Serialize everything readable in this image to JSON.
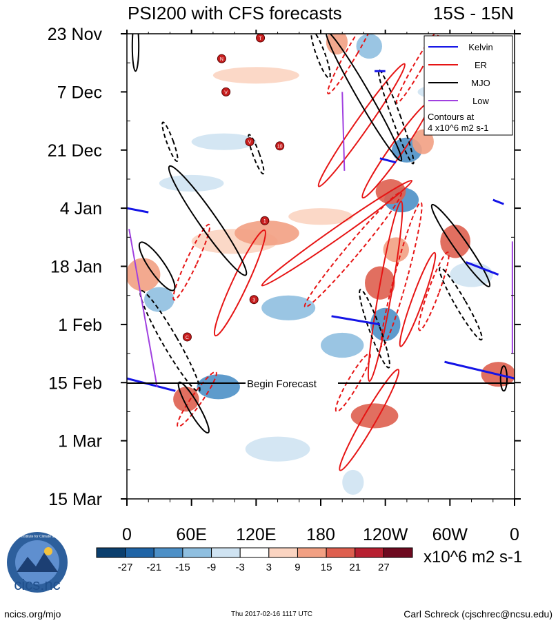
{
  "title_left": "PSI200 with CFS forecasts",
  "title_right": "15S - 15N",
  "forecast_label": "Begin Forecast",
  "units_label": "x10^6 m2 s-1",
  "logo": {
    "text": "cics.nc",
    "ring_text": "Cooperative Institute for Climate and Satellites"
  },
  "footer": {
    "left": "ncics.org/mjo",
    "center": "Thu 2017-02-16 1117 UTC",
    "right": "Carl Schreck (cjschrec@ncsu.edu)"
  },
  "chart_data": {
    "type": "heatmap",
    "title": "PSI200 with CFS forecasts",
    "subtitle": "15S - 15N",
    "x_ticks": [
      "0",
      "60E",
      "120E",
      "180",
      "120W",
      "60W",
      "0"
    ],
    "x_tick_deg": [
      0,
      60,
      120,
      180,
      240,
      300,
      360
    ],
    "xlim_deg": [
      0,
      360
    ],
    "y_ticks": [
      "23 Nov",
      "7 Dec",
      "21 Dec",
      "4 Jan",
      "18 Jan",
      "1 Feb",
      "15 Feb",
      "1 Mar",
      "15 Mar"
    ],
    "y_tick_day": [
      0,
      14,
      28,
      42,
      56,
      70,
      84,
      98,
      112
    ],
    "ylim_day": [
      0,
      112
    ],
    "forecast_start_day": 84,
    "colorbar": {
      "labels": [
        "-27",
        "-21",
        "-15",
        "-9",
        "-3",
        "3",
        "9",
        "15",
        "21",
        "27"
      ],
      "colors": [
        "#0b3f6e",
        "#1f64a6",
        "#4d90c7",
        "#8fbfe0",
        "#cfe3f2",
        "#ffffff",
        "#fbd4c1",
        "#f2a083",
        "#de5f4f",
        "#b82031",
        "#6e0a20"
      ]
    },
    "legend": {
      "position": "top-right",
      "entries": [
        {
          "label": "Kelvin",
          "color": "#1414e6"
        },
        {
          "label": "ER",
          "color": "#e61414"
        },
        {
          "label": "MJO",
          "color": "#000000"
        },
        {
          "label": "Low",
          "color": "#a040e0"
        }
      ],
      "note_line1": "Contours at",
      "note_line2": "4 x10^6 m2 s-1"
    },
    "anomaly_blobs": [
      {
        "lon": 15,
        "day": 58,
        "rlon": 16,
        "rday": 4,
        "value": 14
      },
      {
        "lon": 30,
        "day": 64,
        "rlon": 14,
        "rday": 3,
        "value": -12
      },
      {
        "lon": 55,
        "day": 88,
        "rlon": 12,
        "rday": 3,
        "value": 16
      },
      {
        "lon": 85,
        "day": 85,
        "rlon": 20,
        "rday": 3,
        "value": -20
      },
      {
        "lon": 100,
        "day": 50,
        "rlon": 40,
        "rday": 3,
        "value": 7
      },
      {
        "lon": 90,
        "day": 26,
        "rlon": 30,
        "rday": 2,
        "value": -6
      },
      {
        "lon": 130,
        "day": 48,
        "rlon": 30,
        "rday": 3,
        "value": 10
      },
      {
        "lon": 150,
        "day": 66,
        "rlon": 25,
        "rday": 3,
        "value": -9
      },
      {
        "lon": 200,
        "day": 75,
        "rlon": 20,
        "rday": 3,
        "value": -10
      },
      {
        "lon": 230,
        "day": 92,
        "rlon": 22,
        "rday": 3,
        "value": 18
      },
      {
        "lon": 240,
        "day": 70,
        "rlon": 14,
        "rday": 4,
        "value": -16
      },
      {
        "lon": 235,
        "day": 60,
        "rlon": 14,
        "rday": 4,
        "value": 19
      },
      {
        "lon": 250,
        "day": 52,
        "rlon": 12,
        "rday": 3,
        "value": 15
      },
      {
        "lon": 255,
        "day": 40,
        "rlon": 16,
        "rday": 3,
        "value": -18
      },
      {
        "lon": 245,
        "day": 38,
        "rlon": 14,
        "rday": 3,
        "value": 17
      },
      {
        "lon": 260,
        "day": 28,
        "rlon": 14,
        "rday": 3,
        "value": -15
      },
      {
        "lon": 275,
        "day": 26,
        "rlon": 10,
        "rday": 3,
        "value": 12
      },
      {
        "lon": 225,
        "day": 3,
        "rlon": 12,
        "rday": 3,
        "value": -14
      },
      {
        "lon": 195,
        "day": 2,
        "rlon": 10,
        "rday": 3,
        "value": 13
      },
      {
        "lon": 305,
        "day": 50,
        "rlon": 14,
        "rday": 4,
        "value": 16
      },
      {
        "lon": 345,
        "day": 82,
        "rlon": 16,
        "rday": 3,
        "value": 21
      },
      {
        "lon": 320,
        "day": 58,
        "rlon": 20,
        "rday": 3,
        "value": -6
      },
      {
        "lon": 180,
        "day": 44,
        "rlon": 30,
        "rday": 2,
        "value": 8
      },
      {
        "lon": 60,
        "day": 36,
        "rlon": 30,
        "rday": 2,
        "value": -5
      },
      {
        "lon": 140,
        "day": 100,
        "rlon": 30,
        "rday": 3,
        "value": -6
      },
      {
        "lon": 210,
        "day": 108,
        "rlon": 10,
        "rday": 3,
        "value": -8
      },
      {
        "lon": 300,
        "day": 14,
        "rlon": 30,
        "rday": 2,
        "value": -7
      },
      {
        "lon": 120,
        "day": 10,
        "rlon": 40,
        "rday": 2,
        "value": 6
      }
    ],
    "contours": [
      {
        "type": "ER",
        "dashed": false,
        "lon": 105,
        "day": 60,
        "rlon": 7,
        "rday": 14,
        "rot": 25
      },
      {
        "type": "ER",
        "dashed": true,
        "lon": 60,
        "day": 55,
        "rlon": 5,
        "rday": 10,
        "rot": 25
      },
      {
        "type": "ER",
        "dashed": false,
        "lon": 195,
        "day": 48,
        "rlon": 5,
        "rday": 22,
        "rot": 55
      },
      {
        "type": "ER",
        "dashed": true,
        "lon": 210,
        "day": 52,
        "rlon": 6,
        "rday": 18,
        "rot": 40
      },
      {
        "type": "ER",
        "dashed": false,
        "lon": 240,
        "day": 62,
        "rlon": 6,
        "rday": 22,
        "rot": 10
      },
      {
        "type": "ER",
        "dashed": true,
        "lon": 255,
        "day": 58,
        "rlon": 6,
        "rday": 18,
        "rot": 15
      },
      {
        "type": "ER",
        "dashed": false,
        "lon": 270,
        "day": 64,
        "rlon": 5,
        "rday": 12,
        "rot": 20
      },
      {
        "type": "ER",
        "dashed": true,
        "lon": 285,
        "day": 62,
        "rlon": 5,
        "rday": 10,
        "rot": 20
      },
      {
        "type": "ER",
        "dashed": false,
        "lon": 225,
        "day": 93,
        "rlon": 6,
        "rday": 14,
        "rot": 30
      },
      {
        "type": "ER",
        "dashed": true,
        "lon": 210,
        "day": 84,
        "rlon": 5,
        "rday": 8,
        "rot": 30
      },
      {
        "type": "ER",
        "dashed": true,
        "lon": 65,
        "day": 88,
        "rlon": 5,
        "rday": 8,
        "rot": 35
      },
      {
        "type": "ER",
        "dashed": false,
        "lon": 218,
        "day": 22,
        "rlon": 6,
        "rday": 18,
        "rot": 35
      },
      {
        "type": "ER",
        "dashed": false,
        "lon": 250,
        "day": 28,
        "rlon": 6,
        "rday": 14,
        "rot": 35
      },
      {
        "type": "ER",
        "dashed": true,
        "lon": 210,
        "day": 4,
        "rlon": 5,
        "rday": 12,
        "rot": 30
      },
      {
        "type": "ER",
        "dashed": true,
        "lon": 270,
        "day": 8,
        "rlon": 4,
        "rday": 10,
        "rot": 30
      },
      {
        "type": "MJO",
        "dashed": false,
        "lon": 75,
        "day": 45,
        "rlon": 8,
        "rday": 16,
        "rot": -35
      },
      {
        "type": "MJO",
        "dashed": false,
        "lon": 28,
        "day": 56,
        "rlon": 7,
        "rday": 7,
        "rot": -35
      },
      {
        "type": "MJO",
        "dashed": true,
        "lon": 40,
        "day": 74,
        "rlon": 7,
        "rday": 14,
        "rot": -30
      },
      {
        "type": "MJO",
        "dashed": false,
        "lon": 62,
        "day": 90,
        "rlon": 5,
        "rday": 7,
        "rot": -30
      },
      {
        "type": "MJO",
        "dashed": false,
        "lon": 220,
        "day": 15,
        "rlon": 6,
        "rday": 18,
        "rot": -30
      },
      {
        "type": "MJO",
        "dashed": true,
        "lon": 250,
        "day": 20,
        "rlon": 4,
        "rday": 12,
        "rot": -20
      },
      {
        "type": "MJO",
        "dashed": false,
        "lon": 310,
        "day": 51,
        "rlon": 6,
        "rday": 12,
        "rot": -35
      },
      {
        "type": "MJO",
        "dashed": true,
        "lon": 310,
        "day": 65,
        "rlon": 5,
        "rday": 10,
        "rot": -30
      },
      {
        "type": "MJO",
        "dashed": true,
        "lon": 230,
        "day": 71,
        "rlon": 5,
        "rday": 10,
        "rot": -20
      },
      {
        "type": "MJO",
        "dashed": false,
        "lon": 350,
        "day": 83,
        "rlon": 3,
        "rday": 3,
        "rot": 0
      },
      {
        "type": "MJO",
        "dashed": true,
        "lon": 180,
        "day": 5,
        "rlon": 4,
        "rday": 6,
        "rot": -20
      },
      {
        "type": "MJO",
        "dashed": true,
        "lon": 40,
        "day": 26,
        "rlon": 3,
        "rday": 5,
        "rot": -20
      },
      {
        "type": "MJO",
        "dashed": true,
        "lon": 120,
        "day": 29,
        "rlon": 3,
        "rday": 5,
        "rot": -20
      },
      {
        "type": "MJO",
        "dashed": false,
        "lon": 8,
        "day": 3,
        "rlon": 3,
        "rday": 6,
        "rot": 0
      }
    ],
    "kelvin_segments": [
      {
        "lon1": 0,
        "day1": 83,
        "lon2": 45,
        "day2": 86
      },
      {
        "lon1": 190,
        "day1": 68,
        "lon2": 235,
        "day2": 70
      },
      {
        "lon1": 295,
        "day1": 79,
        "lon2": 360,
        "day2": 83
      },
      {
        "lon1": 315,
        "day1": 55,
        "lon2": 345,
        "day2": 58
      },
      {
        "lon1": 340,
        "day1": 40,
        "lon2": 350,
        "day2": 41
      },
      {
        "lon1": 0,
        "day1": 42,
        "lon2": 20,
        "day2": 43
      },
      {
        "lon1": 235,
        "day1": 30,
        "lon2": 250,
        "day2": 31
      },
      {
        "lon1": 230,
        "day1": 9,
        "lon2": 240,
        "day2": 9
      }
    ],
    "low_segments": [
      {
        "lon1": 2,
        "day1": 47,
        "lon2": 28,
        "day2": 85
      },
      {
        "lon1": 200,
        "day1": 14,
        "lon2": 202,
        "day2": 33
      },
      {
        "lon1": 358,
        "day1": 50,
        "lon2": 358,
        "day2": 77
      }
    ],
    "storms": [
      {
        "lon": 124,
        "day": 1,
        "label": "T"
      },
      {
        "lon": 88,
        "day": 6,
        "label": "N"
      },
      {
        "lon": 92,
        "day": 14,
        "label": "V"
      },
      {
        "lon": 114,
        "day": 26,
        "label": "V"
      },
      {
        "lon": 142,
        "day": 27,
        "label": "10"
      },
      {
        "lon": 128,
        "day": 45,
        "label": "1"
      },
      {
        "lon": 118,
        "day": 64,
        "label": "3"
      },
      {
        "lon": 56,
        "day": 73,
        "label": "C"
      }
    ]
  }
}
